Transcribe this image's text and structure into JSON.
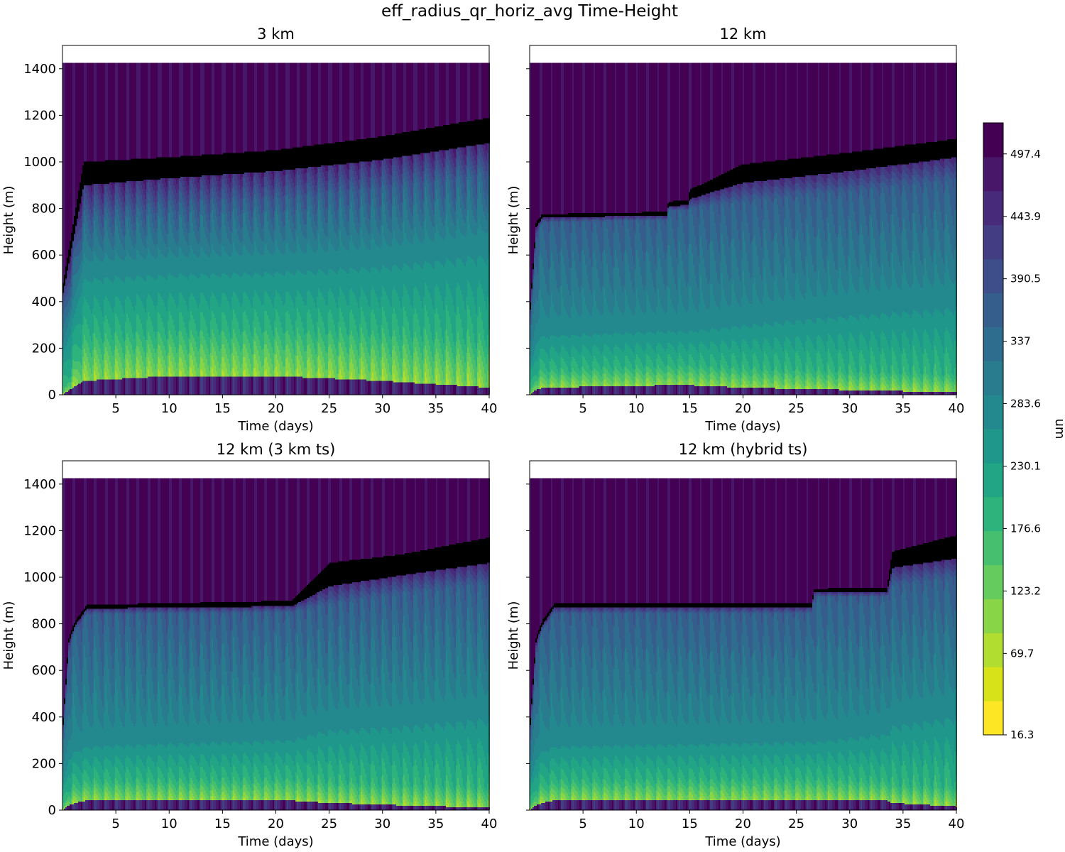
{
  "chart_data": {
    "type": "heatmap",
    "suptitle": "eff_radius_qr_horiz_avg Time-Height",
    "shared": {
      "xlabel": "Time (days)",
      "ylabel": "Height (m)",
      "xlim": [
        0,
        40
      ],
      "ylim": [
        0,
        1500
      ],
      "xticks": [
        5,
        10,
        15,
        20,
        25,
        30,
        35,
        40
      ],
      "yticks": [
        0,
        200,
        400,
        600,
        800,
        1000,
        1200,
        1400
      ],
      "data_top": 1425
    },
    "colorbar": {
      "label": "um",
      "ticks": [
        16.3,
        69.7,
        123.2,
        176.6,
        230.1,
        283.6,
        337.0,
        390.5,
        443.9,
        497.4
      ],
      "vmin": 0,
      "vmax": 524,
      "levels": 19,
      "colors": [
        "#fde725",
        "#d8e219",
        "#b0dd2f",
        "#89d548",
        "#65cb5e",
        "#46c06f",
        "#2eb37c",
        "#21a585",
        "#1f978b",
        "#23898e",
        "#297b8e",
        "#2e6d8e",
        "#355e8d",
        "#3d4e8a",
        "#433d84",
        "#472a7a",
        "#481769",
        "#440154"
      ]
    },
    "panels": [
      {
        "title": "3 km",
        "profile": [
          {
            "t": 0,
            "z": [
              0,
              0,
              180,
              320,
              420,
              460
            ]
          },
          {
            "t": 2,
            "z": [
              60,
              240,
              540,
              760,
              900,
              1000
            ]
          },
          {
            "t": 10,
            "z": [
              80,
              260,
              560,
              800,
              930,
              1020
            ]
          },
          {
            "t": 20,
            "z": [
              80,
              270,
              570,
              830,
              960,
              1050
            ]
          },
          {
            "t": 30,
            "z": [
              60,
              260,
              600,
              880,
              1010,
              1110
            ]
          },
          {
            "t": 40,
            "z": [
              30,
              230,
              660,
              950,
              1080,
              1190
            ]
          }
        ],
        "oscillation": {
          "period_days": 1.0,
          "amp_low": 0.3,
          "amp_high": 0.35
        }
      },
      {
        "title": "12 km",
        "profile": [
          {
            "t": 0,
            "z": [
              0,
              0,
              120,
              250,
              320,
              350
            ]
          },
          {
            "t": 0.6,
            "z": [
              20,
              80,
              250,
              680,
              720,
              740
            ]
          },
          {
            "t": 1.2,
            "z": [
              30,
              100,
              280,
              740,
              760,
              775
            ]
          },
          {
            "t": 12.9,
            "z": [
              40,
              120,
              300,
              750,
              770,
              785
            ]
          },
          {
            "t": 13.0,
            "z": [
              40,
              120,
              300,
              790,
              810,
              830
            ]
          },
          {
            "t": 14.9,
            "z": [
              40,
              120,
              300,
              790,
              815,
              835
            ]
          },
          {
            "t": 15.0,
            "z": [
              40,
              120,
              300,
              800,
              840,
              880
            ]
          },
          {
            "t": 20,
            "z": [
              30,
              110,
              330,
              830,
              910,
              990
            ]
          },
          {
            "t": 30,
            "z": [
              20,
              100,
              380,
              870,
              960,
              1040
            ]
          },
          {
            "t": 40,
            "z": [
              10,
              90,
              420,
              920,
              1020,
              1100
            ]
          }
        ],
        "oscillation": {
          "period_days": 1.0,
          "amp_low": 0.25,
          "amp_high": 0.2
        }
      },
      {
        "title": "12 km (3 km ts)",
        "profile": [
          {
            "t": 0,
            "z": [
              0,
              0,
              120,
              250,
              320,
              350
            ]
          },
          {
            "t": 0.6,
            "z": [
              20,
              80,
              250,
              680,
              720,
              740
            ]
          },
          {
            "t": 1.2,
            "z": [
              30,
              100,
              280,
              770,
              795,
              815
            ]
          },
          {
            "t": 2.3,
            "z": [
              40,
              120,
              300,
              840,
              865,
              880
            ]
          },
          {
            "t": 21.5,
            "z": [
              40,
              130,
              330,
              850,
              875,
              900
            ]
          },
          {
            "t": 25,
            "z": [
              30,
              120,
              380,
              880,
              960,
              1060
            ]
          },
          {
            "t": 32,
            "z": [
              20,
              110,
              400,
              930,
              1010,
              1100
            ]
          },
          {
            "t": 40,
            "z": [
              10,
              100,
              440,
              970,
              1060,
              1170
            ]
          }
        ],
        "oscillation": {
          "period_days": 1.0,
          "amp_low": 0.3,
          "amp_high": 0.25
        }
      },
      {
        "title": "12 km (hybrid ts)",
        "profile": [
          {
            "t": 0,
            "z": [
              0,
              0,
              120,
              250,
              320,
              350
            ]
          },
          {
            "t": 0.6,
            "z": [
              20,
              80,
              250,
              680,
              720,
              740
            ]
          },
          {
            "t": 1.2,
            "z": [
              30,
              100,
              280,
              770,
              795,
              815
            ]
          },
          {
            "t": 2.3,
            "z": [
              40,
              120,
              300,
              845,
              870,
              885
            ]
          },
          {
            "t": 26.5,
            "z": [
              40,
              130,
              320,
              845,
              870,
              890
            ]
          },
          {
            "t": 26.6,
            "z": [
              40,
              130,
              320,
              915,
              935,
              950
            ]
          },
          {
            "t": 33.5,
            "z": [
              40,
              120,
              360,
              915,
              935,
              955
            ]
          },
          {
            "t": 34,
            "z": [
              30,
              110,
              400,
              960,
              1040,
              1110
            ]
          },
          {
            "t": 40,
            "z": [
              15,
              100,
              450,
              1000,
              1080,
              1180
            ]
          }
        ],
        "oscillation": {
          "period_days": 1.0,
          "amp_low": 0.28,
          "amp_high": 0.2
        }
      }
    ]
  }
}
